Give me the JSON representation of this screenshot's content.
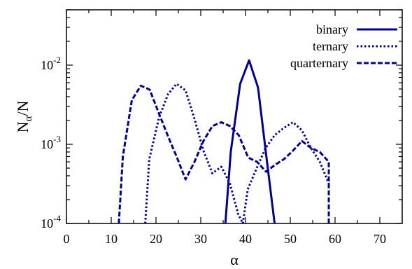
{
  "chart_data": {
    "type": "line",
    "title": "",
    "xlabel": "α",
    "ylabel": {
      "base": "N",
      "sub": "α",
      "rest": "/N"
    },
    "xlim": [
      0,
      75
    ],
    "ylim": [
      0.0001,
      0.05
    ],
    "yscale": "log",
    "xticks": [
      0,
      10,
      20,
      30,
      40,
      50,
      60,
      70
    ],
    "xtick_labels": [
      "0",
      "10",
      "20",
      "30",
      "40",
      "50",
      "60",
      "70"
    ],
    "yticks": [
      0.0001,
      0.001,
      0.01
    ],
    "ytick_labels": [
      {
        "base": "10",
        "exp": "-4"
      },
      {
        "base": "10",
        "exp": "-3"
      },
      {
        "base": "10",
        "exp": "-2"
      }
    ],
    "legend_position": "top-right",
    "grid": false,
    "series": [
      {
        "name": "binary",
        "style": "solid",
        "color": "#00008b",
        "x": [
          35.5,
          36.7,
          38.8,
          40.8,
          42.8,
          44.8,
          46.5
        ],
        "y": [
          0.0001,
          0.0008,
          0.0058,
          0.0115,
          0.0052,
          0.0006,
          0.0001
        ]
      },
      {
        "name": "ternary",
        "style": "dotted",
        "color": "#00008b",
        "x": [
          17.6,
          18.5,
          20.7,
          22.7,
          24.6,
          26.6,
          28.6,
          30.6,
          32.6,
          34.6,
          36.5,
          38.4,
          39.4,
          40.5,
          42.5,
          44.5,
          46.5,
          48.5,
          50.6,
          52.6,
          54.6,
          56.6,
          58.6
        ],
        "y": [
          0.0001,
          0.00065,
          0.0022,
          0.0043,
          0.0058,
          0.0048,
          0.0021,
          0.00083,
          0.00043,
          0.00052,
          0.00032,
          0.00013,
          0.0001,
          0.00027,
          0.0005,
          0.0009,
          0.0013,
          0.0016,
          0.0019,
          0.0015,
          0.0009,
          0.0006,
          0.00032
        ]
      },
      {
        "name": "quarternary",
        "style": "dashed",
        "color": "#00008b",
        "x": [
          11.7,
          12.6,
          14.6,
          16.6,
          18.6,
          20.6,
          22.6,
          24.6,
          26.6,
          28.6,
          30.6,
          32.6,
          34.6,
          36.5,
          38.5,
          40.6,
          42.6,
          44.6,
          46.6,
          48.6,
          50.6,
          52.6,
          54.6,
          56.6,
          58.6,
          58.6
        ],
        "y": [
          0.0001,
          0.0007,
          0.0036,
          0.0055,
          0.0049,
          0.0025,
          0.0013,
          0.0007,
          0.00036,
          0.0006,
          0.0011,
          0.0017,
          0.0019,
          0.0017,
          0.0013,
          0.00068,
          0.0006,
          0.00045,
          0.00055,
          0.00065,
          0.00083,
          0.0011,
          0.0009,
          0.0008,
          0.0006,
          0.0001
        ]
      }
    ]
  }
}
